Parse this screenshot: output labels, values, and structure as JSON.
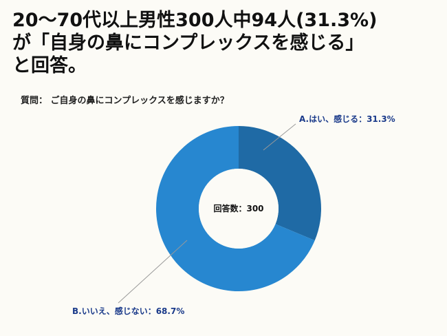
{
  "chart_data": {
    "type": "donut",
    "title": [
      "20〜70代以上男性300人中94人(31.3%)",
      "が「自身の鼻にコンプレックスを感じる」",
      "と回答。"
    ],
    "subtitle": "質問： ご自身の鼻にコンプレックスを感じますか？",
    "center_label": "回答数：300",
    "values": [
      31.3,
      68.7
    ],
    "value_labels": [
      "A.はい、感じる：31.3%",
      "B.いいえ、感じない：68.7%"
    ],
    "colors": [
      "#1f6aa5",
      "#2787d0"
    ]
  }
}
